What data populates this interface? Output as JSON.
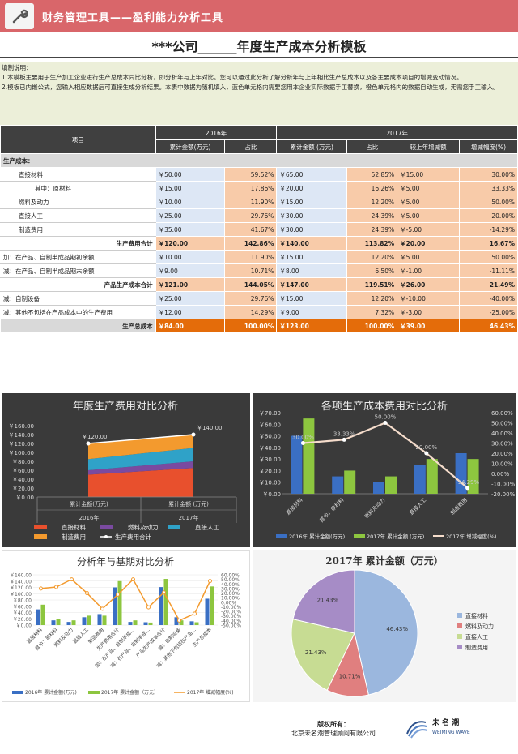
{
  "header": {
    "title": "财务管理工具——盈利能力分析工具",
    "icon": "wrench-icon"
  },
  "doc": {
    "title": "***公司______年度生产成本分析模板"
  },
  "notes": {
    "label": "填制说明：",
    "line1": "1.本模板主要用于生产加工企业进行生产总成本同比分析，即分析年与上年对比。您可以通过此分析了解分析年与上年相比生产总成本以及各主要成本项目的增减变动情况。",
    "line2": "2.模板已内嵌公式，您输入相应数据后可直接生成分析结果。本表中数据为随机填入，蓝色单元格内需要您用本企业实际数据手工替换，橙色单元格内的数据自动生成，无需您手工输入。"
  },
  "table": {
    "col_item": "项目",
    "year1": "2016年",
    "year2": "2017年",
    "sub": [
      "累计金额(万元)",
      "占比",
      "累计金额 (万元)",
      "占比",
      "较上年增减额",
      "增减幅度(%)"
    ],
    "section": "生产成本：",
    "rows": [
      {
        "label": "直接材料",
        "c": [
          "￥50.00",
          "59.52%",
          "￥65.00",
          "52.85%",
          "￥15.00",
          "30.00%"
        ],
        "kind": "item"
      },
      {
        "label": "其中：原材料",
        "c": [
          "￥15.00",
          "17.86%",
          "￥20.00",
          "16.26%",
          "￥5.00",
          "33.33%"
        ],
        "kind": "item2"
      },
      {
        "label": "燃料及动力",
        "c": [
          "￥10.00",
          "11.90%",
          "￥15.00",
          "12.20%",
          "￥5.00",
          "50.00%"
        ],
        "kind": "item"
      },
      {
        "label": "直接人工",
        "c": [
          "￥25.00",
          "29.76%",
          "￥30.00",
          "24.39%",
          "￥5.00",
          "20.00%"
        ],
        "kind": "item"
      },
      {
        "label": "制造费用",
        "c": [
          "￥35.00",
          "41.67%",
          "￥30.00",
          "24.39%",
          "￥-5.00",
          "-14.29%"
        ],
        "kind": "item"
      },
      {
        "label": "生产费用合计",
        "c": [
          "￥120.00",
          "142.86%",
          "￥140.00",
          "113.82%",
          "￥20.00",
          "16.67%"
        ],
        "kind": "sum"
      },
      {
        "label": "加：在产品、自制半成品期初余额",
        "c": [
          "￥10.00",
          "11.90%",
          "￥15.00",
          "12.20%",
          "￥5.00",
          "50.00%"
        ],
        "kind": "plain"
      },
      {
        "label": "减：在产品、自制半成品期末余额",
        "c": [
          "￥9.00",
          "10.71%",
          "￥8.00",
          "6.50%",
          "￥-1.00",
          "-11.11%"
        ],
        "kind": "plain"
      },
      {
        "label": "产品生产成本合计",
        "c": [
          "￥121.00",
          "144.05%",
          "￥147.00",
          "119.51%",
          "￥26.00",
          "21.49%"
        ],
        "kind": "sum"
      },
      {
        "label": "减：自制设备",
        "c": [
          "￥25.00",
          "29.76%",
          "￥15.00",
          "12.20%",
          "￥-10.00",
          "-40.00%"
        ],
        "kind": "plain"
      },
      {
        "label": "减：其他不包括在产品成本中的生产费用",
        "c": [
          "￥12.00",
          "14.29%",
          "￥9.00",
          "7.32%",
          "￥-3.00",
          "-25.00%"
        ],
        "kind": "plain"
      }
    ],
    "total": {
      "label": "生产总成本",
      "c": [
        "￥84.00",
        "100.00%",
        "￥123.00",
        "100.00%",
        "￥39.00",
        "46.43%"
      ]
    }
  },
  "chart_data": [
    {
      "type": "area",
      "title": "年度生产费用对比分析",
      "categories": [
        "累计金额(万元)",
        "累计金额 (万元)"
      ],
      "groups": [
        "2016年",
        "2017年"
      ],
      "yticks": [
        "￥0.00",
        "￥20.00",
        "￥40.00",
        "￥60.00",
        "￥80.00",
        "￥100.00",
        "￥120.00",
        "￥140.00",
        "￥160.00"
      ],
      "ylim": [
        0,
        160
      ],
      "series": [
        {
          "name": "直接材料",
          "values": [
            50,
            65
          ],
          "color": "#e8502d"
        },
        {
          "name": "燃料及动力",
          "values": [
            10,
            15
          ],
          "color": "#7a4aa0"
        },
        {
          "name": "直接人工",
          "values": [
            25,
            30
          ],
          "color": "#2fa2c8"
        },
        {
          "name": "制造费用",
          "values": [
            35,
            30
          ],
          "color": "#f39a2e"
        }
      ],
      "line": {
        "name": "生产费用合计",
        "values": [
          120,
          140
        ],
        "labels": [
          "￥120.00",
          "￥140.00"
        ]
      }
    },
    {
      "type": "bar",
      "title": "各项生产成本费用对比分析",
      "categories": [
        "直接材料",
        "其中：原材料",
        "燃料及动力",
        "直接人工",
        "制造费用"
      ],
      "yticks_left": [
        "￥0.00",
        "￥10.00",
        "￥20.00",
        "￥30.00",
        "￥40.00",
        "￥50.00",
        "￥60.00",
        "￥70.00"
      ],
      "yticks_right": [
        "-20.00%",
        "-10.00%",
        "0.00%",
        "10.00%",
        "20.00%",
        "30.00%",
        "40.00%",
        "50.00%",
        "60.00%"
      ],
      "series": [
        {
          "name": "2016年 累计金额(万元)",
          "values": [
            50,
            15,
            10,
            25,
            35
          ],
          "color": "#3a6fc4"
        },
        {
          "name": "2017年 累计金额 (万元)",
          "values": [
            65,
            20,
            15,
            30,
            30
          ],
          "color": "#8dc63f"
        }
      ],
      "line": {
        "name": "2017年 增减幅度(%)",
        "values": [
          30,
          33.33,
          50,
          20,
          -14.29
        ],
        "labels": [
          "30.00%",
          "33.33%",
          "50.00%",
          "20.00%",
          "-14.29%"
        ]
      }
    },
    {
      "type": "bar",
      "title": "分析年与基期对比分析",
      "categories": [
        "直接材料",
        "其中：原材料",
        "燃料及动力",
        "直接人工",
        "制造费用",
        "生产费用合计",
        "加：在产品、自制半成…",
        "减：在产品、自制半成…",
        "产品生产成本合计",
        "减：自制设备",
        "减：其他不包括在产品…",
        "生产总成本"
      ],
      "yticks_left": [
        "￥0.00",
        "￥20.00",
        "￥40.00",
        "￥60.00",
        "￥80.00",
        "￥100.00",
        "￥120.00",
        "￥140.00",
        "￥160.00"
      ],
      "yticks_right": [
        "-50.00%",
        "-40.00%",
        "-30.00%",
        "-20.00%",
        "-10.00%",
        "0.00%",
        "10.00%",
        "20.00%",
        "30.00%",
        "40.00%",
        "50.00%",
        "60.00%"
      ],
      "series": [
        {
          "name": "2016年 累计金额(万元)",
          "values": [
            50,
            15,
            10,
            25,
            35,
            120,
            10,
            9,
            121,
            25,
            12,
            84
          ],
          "color": "#3a6fc4"
        },
        {
          "name": "2017年 累计金额（万元）",
          "values": [
            65,
            20,
            15,
            30,
            30,
            140,
            15,
            8,
            147,
            15,
            9,
            123
          ],
          "color": "#8dc63f"
        }
      ],
      "line": {
        "name": "2017年 增减幅度(%)",
        "values": [
          30,
          33.33,
          50,
          20,
          -14.29,
          16.67,
          50,
          -11.11,
          21.49,
          -40,
          -25,
          46.43
        ]
      }
    },
    {
      "type": "pie",
      "title": "2017年 累计金额（万元）",
      "slices": [
        {
          "name": "直接材料",
          "value": 46.43,
          "label": "46.43%",
          "color": "#9bb7de"
        },
        {
          "name": "燃料及动力",
          "value": 10.71,
          "label": "10.71%",
          "color": "#e07f7f"
        },
        {
          "name": "直接人工",
          "value": 21.43,
          "label": "21.43%",
          "color": "#c7dc93"
        },
        {
          "name": "制造费用",
          "value": 21.43,
          "label": "21.43%",
          "color": "#a68cc6"
        }
      ]
    }
  ],
  "footer": {
    "line1": "版权所有：",
    "line2": "北京未名潮管理顾问有限公司"
  },
  "logo": {
    "name": "未 名 潮",
    "sub": "WEIMING WAVE"
  }
}
